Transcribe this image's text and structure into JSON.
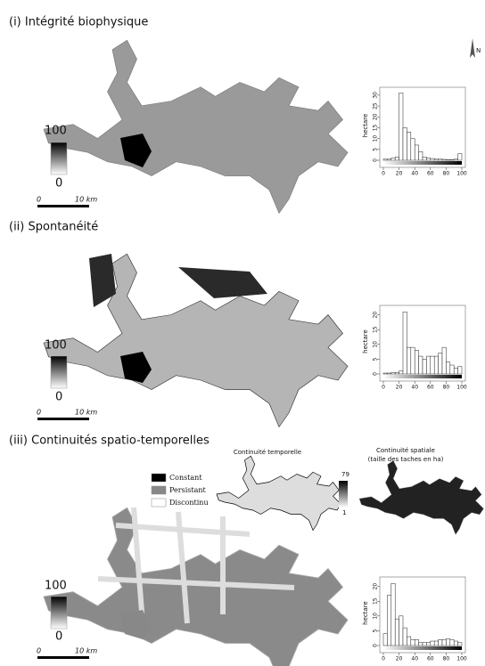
{
  "panels": [
    {
      "title": "(i)  Intégrité biophysique",
      "legend_max": "100",
      "legend_min": "0",
      "scale_start": "0",
      "scale_end": "10 km"
    },
    {
      "title": "(ii)  Spontanéité",
      "legend_max": "100",
      "legend_min": "0",
      "scale_start": "0",
      "scale_end": "10 km"
    },
    {
      "title": "(iii)  Continuités spatio-temporelles",
      "legend_max": "100",
      "legend_min": "0",
      "scale_start": "0",
      "scale_end": "10 km"
    }
  ],
  "north": "N",
  "insets": {
    "temporal_title": "Continuité temporelle",
    "spatial_title": "Continuité spatiale",
    "spatial_subtitle": "(taille des taches en ha)",
    "legend_max": "79",
    "legend_min": "1",
    "classes": [
      "Constant",
      "Persistant",
      "Discontinu"
    ]
  },
  "chart_data": [
    {
      "type": "histogram",
      "ylabel": "hectare",
      "bins": [
        0,
        5,
        10,
        15,
        20,
        25,
        30,
        35,
        40,
        45,
        50,
        55,
        60,
        65,
        70,
        75,
        80,
        85,
        90,
        95,
        100
      ],
      "values": [
        0.5,
        0.5,
        1,
        1.5,
        31,
        15,
        13,
        10,
        7,
        4,
        1.5,
        1,
        0.8,
        0.5,
        0.5,
        0.4,
        0.3,
        0.3,
        0.5,
        3
      ],
      "xlim": [
        0,
        100
      ],
      "xticks": [
        0,
        20,
        40,
        60,
        80,
        100
      ],
      "ylim": [
        0,
        32
      ],
      "yticks": [
        0,
        5,
        10,
        15,
        20,
        25,
        30
      ],
      "color": "#ffffff"
    },
    {
      "type": "histogram",
      "ylabel": "hectare",
      "bins": [
        0,
        5,
        10,
        15,
        20,
        25,
        30,
        35,
        40,
        45,
        50,
        55,
        60,
        65,
        70,
        75,
        80,
        85,
        90,
        95,
        100
      ],
      "values": [
        0.3,
        0.3,
        0.5,
        0.5,
        1,
        21,
        9,
        9,
        8,
        6,
        5,
        6,
        6,
        6,
        7,
        9,
        4,
        3,
        2,
        2.5
      ],
      "xlim": [
        0,
        100
      ],
      "xticks": [
        0,
        20,
        40,
        60,
        80,
        100
      ],
      "ylim": [
        0,
        22
      ],
      "yticks": [
        0,
        5,
        10,
        15,
        20
      ],
      "color": "#ffffff"
    },
    {
      "type": "histogram",
      "ylabel": "hectare",
      "bins": [
        0,
        5,
        10,
        15,
        20,
        25,
        30,
        35,
        40,
        45,
        50,
        55,
        60,
        65,
        70,
        75,
        80,
        85,
        90,
        95,
        100
      ],
      "values": [
        4,
        17,
        21,
        9,
        10,
        6,
        3,
        2,
        2,
        1,
        1,
        1,
        1.5,
        1.5,
        2,
        2,
        2.3,
        2,
        1.5,
        1
      ],
      "xlim": [
        0,
        100
      ],
      "xticks": [
        0,
        20,
        40,
        60,
        80,
        100
      ],
      "ylim": [
        0,
        22
      ],
      "yticks": [
        0,
        5,
        10,
        15,
        20
      ],
      "color": "#ffffff"
    }
  ]
}
